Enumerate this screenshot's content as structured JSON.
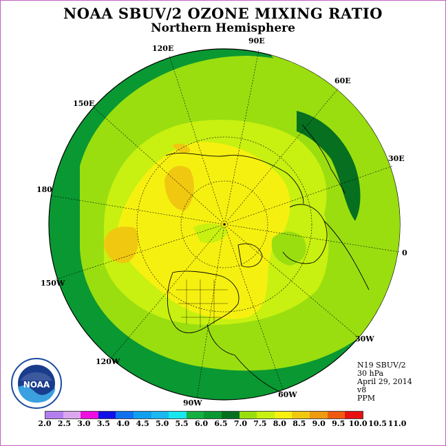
{
  "title": "NOAA SBUV/2 OZONE MIXING RATIO",
  "subtitle": "Northern Hemisphere",
  "longitude_labels": [
    "90E",
    "60E",
    "30E",
    "0",
    "30W",
    "60W",
    "90W",
    "120W",
    "150W",
    "180",
    "150E",
    "120E"
  ],
  "info": {
    "satellite": "N19 SBUV/2",
    "level": "30 hPa",
    "date": "April 29, 2014",
    "version": "v8",
    "units": "PPM"
  },
  "logo_text": "NOAA",
  "colorbar": {
    "ticks": [
      "2.0",
      "2.5",
      "3.0",
      "3.5",
      "4.0",
      "4.5",
      "5.0",
      "5.5",
      "6.0",
      "6.5",
      "7.0",
      "7.5",
      "8.0",
      "8.5",
      "9.0",
      "9.5",
      "10.0",
      "10.5",
      "11.0"
    ],
    "colors": [
      "#b57ef0",
      "#dca6ee",
      "#ee0ee0",
      "#1010e8",
      "#1070f0",
      "#10a0f0",
      "#1ab8f0",
      "#18e6f0",
      "#14b040",
      "#0a9832",
      "#067020",
      "#9ade10",
      "#c8f010",
      "#f6f010",
      "#f0c810",
      "#f09a10",
      "#f05a10",
      "#e81010",
      "#8a5030"
    ]
  }
}
